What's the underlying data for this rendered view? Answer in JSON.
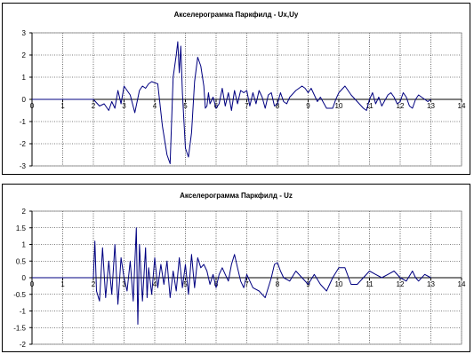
{
  "chart_data": [
    {
      "type": "line",
      "title": "Акселерограмма Паркфилд - Ux,Uy",
      "xlabel": "",
      "ylabel": "",
      "xlim": [
        0,
        14
      ],
      "ylim": [
        -3,
        3
      ],
      "xticks": [
        0,
        1,
        2,
        3,
        4,
        5,
        6,
        7,
        8,
        9,
        10,
        11,
        12,
        13,
        14
      ],
      "yticks": [
        -3,
        -2,
        -1,
        0,
        1,
        2,
        3
      ],
      "grid": true,
      "line_color": "#000080",
      "series": [
        {
          "x": [
            0,
            2,
            2.2,
            2.35,
            2.5,
            2.6,
            2.7,
            2.8,
            2.9,
            3.0,
            3.1,
            3.2,
            3.35,
            3.5,
            3.6,
            3.7,
            3.8,
            3.9,
            4.0,
            4.1,
            4.25,
            4.4,
            4.5,
            4.6,
            4.7,
            4.75,
            4.8,
            4.85,
            4.9,
            5.0,
            5.1,
            5.2,
            5.3,
            5.4,
            5.5,
            5.6,
            5.65,
            5.7,
            5.75,
            5.8,
            5.9,
            6.0,
            6.1,
            6.2,
            6.3,
            6.4,
            6.5,
            6.6,
            6.7,
            6.8,
            6.9,
            7.0,
            7.1,
            7.2,
            7.3,
            7.4,
            7.5,
            7.6,
            7.7,
            7.8,
            7.9,
            8.0,
            8.1,
            8.2,
            8.3,
            8.4,
            8.6,
            8.8,
            8.9,
            9.0,
            9.1,
            9.2,
            9.3,
            9.4,
            9.6,
            9.8,
            9.9,
            10.0,
            10.2,
            10.3,
            10.4,
            10.6,
            10.8,
            10.9,
            11.0,
            11.1,
            11.2,
            11.3,
            11.4,
            11.6,
            11.7,
            11.8,
            11.9,
            12.0,
            12.1,
            12.2,
            12.3,
            12.4,
            12.5,
            12.6,
            12.7,
            12.8,
            12.9,
            13.0
          ],
          "values": [
            0,
            0,
            -0.3,
            -0.2,
            -0.5,
            -0.1,
            -0.4,
            0.4,
            -0.2,
            0.6,
            0.4,
            0.2,
            -0.6,
            0.4,
            0.6,
            0.5,
            0.7,
            0.8,
            0.75,
            0.7,
            -1.2,
            -2.5,
            -2.9,
            1.0,
            2.0,
            2.6,
            1.2,
            2.4,
            0.3,
            -2.2,
            -2.6,
            -1.5,
            0.8,
            1.9,
            1.5,
            0.6,
            -0.4,
            -0.3,
            0.3,
            -0.2,
            0.1,
            -0.4,
            -0.2,
            0.5,
            -0.3,
            0.3,
            -0.5,
            0.4,
            -0.2,
            0.4,
            0.3,
            0.4,
            -0.3,
            0.3,
            -0.2,
            0.4,
            0.1,
            -0.4,
            0.2,
            0.3,
            -0.3,
            -0.2,
            0.3,
            -0.1,
            -0.2,
            0.1,
            0.4,
            0.6,
            0.5,
            0.3,
            0.5,
            0.2,
            -0.1,
            0.1,
            -0.4,
            -0.4,
            0.0,
            0.3,
            0.6,
            0.4,
            0.2,
            -0.1,
            -0.4,
            -0.5,
            0.0,
            0.3,
            -0.2,
            0.1,
            -0.3,
            0.2,
            0.3,
            0.1,
            -0.2,
            -0.1,
            0.3,
            0.1,
            -0.3,
            -0.4,
            0.0,
            0.2,
            0.1,
            0.0,
            -0.1,
            0.0
          ]
        }
      ]
    },
    {
      "type": "line",
      "title": "Акселерограмма Паркфилд - Uz",
      "xlabel": "",
      "ylabel": "",
      "xlim": [
        0,
        14
      ],
      "ylim": [
        -2,
        2
      ],
      "xticks": [
        0,
        1,
        2,
        3,
        4,
        5,
        6,
        7,
        8,
        9,
        10,
        11,
        12,
        13,
        14
      ],
      "yticks": [
        -2,
        -1.5,
        -1,
        -0.5,
        0,
        0.5,
        1,
        1.5,
        2
      ],
      "ytick_labels": [
        "-2",
        "-1.5",
        "-1",
        "-0.5",
        "0",
        "0.5",
        "1",
        "1.5",
        "2"
      ],
      "grid": true,
      "line_color": "#000080",
      "series": [
        {
          "x": [
            0,
            2.0,
            2.05,
            2.1,
            2.2,
            2.3,
            2.4,
            2.5,
            2.6,
            2.7,
            2.8,
            2.9,
            3.0,
            3.1,
            3.2,
            3.3,
            3.4,
            3.45,
            3.5,
            3.6,
            3.7,
            3.75,
            3.8,
            3.9,
            4.0,
            4.1,
            4.2,
            4.3,
            4.4,
            4.5,
            4.6,
            4.7,
            4.8,
            4.9,
            5.0,
            5.1,
            5.2,
            5.3,
            5.4,
            5.5,
            5.6,
            5.7,
            5.8,
            5.9,
            6.0,
            6.1,
            6.2,
            6.3,
            6.4,
            6.5,
            6.6,
            6.7,
            6.8,
            6.9,
            7.0,
            7.2,
            7.4,
            7.6,
            7.8,
            7.9,
            8.0,
            8.1,
            8.2,
            8.4,
            8.6,
            8.8,
            9.0,
            9.2,
            9.4,
            9.6,
            9.8,
            10.0,
            10.2,
            10.4,
            10.6,
            10.8,
            11.0,
            11.2,
            11.4,
            11.6,
            11.8,
            12.0,
            12.2,
            12.4,
            12.5,
            12.6,
            12.8,
            13.0
          ],
          "values": [
            0,
            0,
            1.1,
            -0.4,
            -0.7,
            0.9,
            -0.6,
            0.5,
            -0.5,
            1.0,
            -0.8,
            0.6,
            0.0,
            -0.4,
            0.5,
            -0.7,
            1.5,
            -1.4,
            1.0,
            -0.7,
            0.9,
            -0.6,
            0.3,
            -0.5,
            0.6,
            -0.3,
            0.4,
            -0.2,
            0.5,
            -0.6,
            0.2,
            -0.4,
            0.6,
            -0.3,
            0.4,
            -0.5,
            0.7,
            -0.3,
            0.6,
            0.3,
            0.4,
            0.2,
            -0.2,
            0.1,
            -0.3,
            0.1,
            0.3,
            0.1,
            -0.1,
            0.4,
            0.7,
            0.3,
            -0.1,
            -0.3,
            0.1,
            -0.3,
            -0.4,
            -0.6,
            0.0,
            0.4,
            0.45,
            0.2,
            0.0,
            -0.1,
            0.2,
            0.0,
            -0.2,
            0.1,
            -0.2,
            -0.4,
            0.0,
            0.3,
            0.3,
            -0.2,
            -0.2,
            0.0,
            0.2,
            0.1,
            0.0,
            0.1,
            0.2,
            0.0,
            -0.1,
            0.2,
            0.0,
            -0.1,
            0.1,
            0.0
          ]
        }
      ]
    }
  ]
}
